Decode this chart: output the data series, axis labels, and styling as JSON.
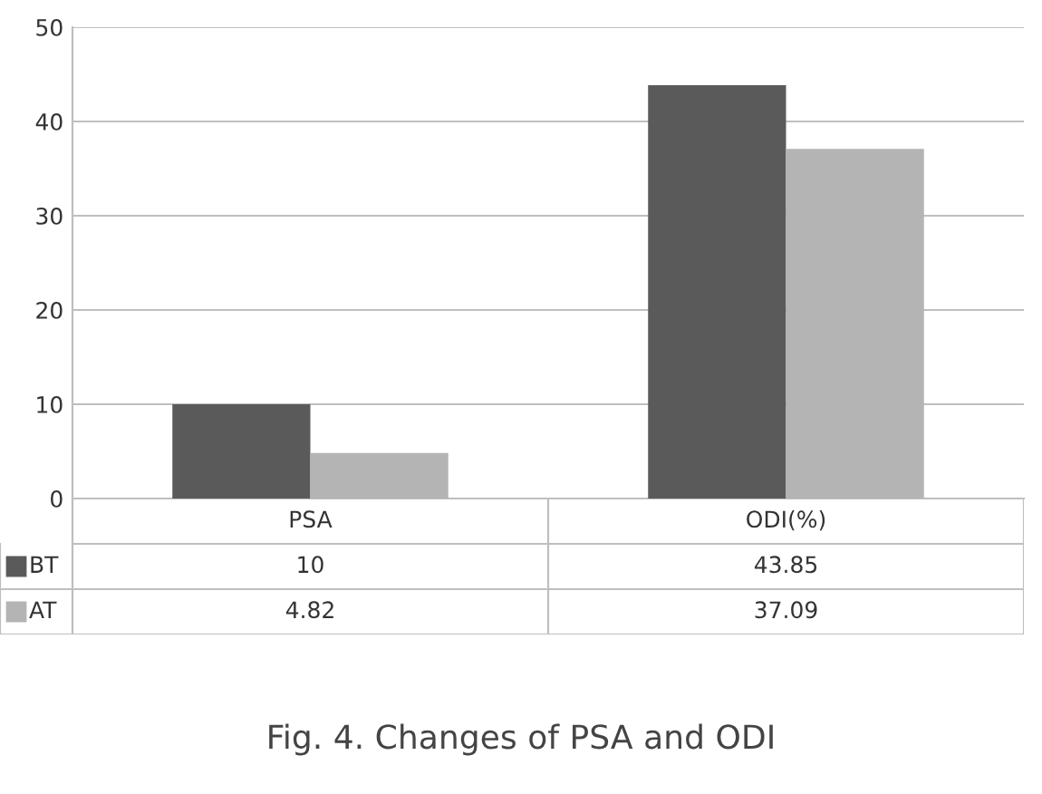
{
  "chart_data": {
    "type": "bar",
    "categories": [
      "PSA",
      "ODI(%)"
    ],
    "series": [
      {
        "name": "BT",
        "color": "#5a5a5a",
        "values": [
          10,
          43.85
        ]
      },
      {
        "name": "AT",
        "color": "#b4b4b4",
        "values": [
          4.82,
          37.09
        ]
      }
    ],
    "ylim": [
      0,
      50
    ],
    "yticks": [
      0,
      10,
      20,
      30,
      40,
      50
    ],
    "grid": "y",
    "data_labels": true,
    "legend": "bottom",
    "annotations": [
      "Fig. 4. Changes of PSA and ODI"
    ]
  }
}
